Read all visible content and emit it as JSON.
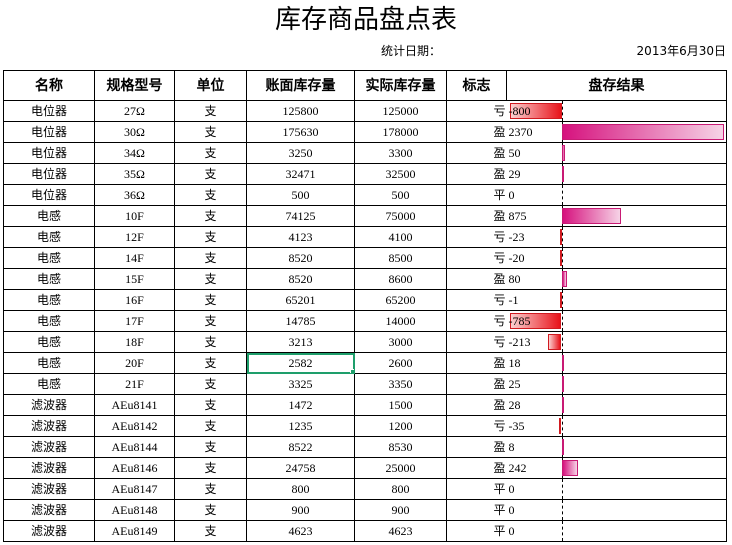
{
  "title": "库存商品盘点表",
  "stat_label": "统计日期：",
  "stat_date": "2013年6月30日",
  "columns": [
    "名称",
    "规格型号",
    "单位",
    "账面库存量",
    "实际库存量",
    "标志",
    "盘存结果"
  ],
  "rows": [
    {
      "name": "电位器",
      "spec": "27Ω",
      "unit": "支",
      "book": "125800",
      "actual": "125000",
      "flag": "亏",
      "result": "-800",
      "value": -800
    },
    {
      "name": "电位器",
      "spec": "30Ω",
      "unit": "支",
      "book": "175630",
      "actual": "178000",
      "flag": "盈",
      "result": "2370",
      "value": 2370
    },
    {
      "name": "电位器",
      "spec": "34Ω",
      "unit": "支",
      "book": "3250",
      "actual": "3300",
      "flag": "盈",
      "result": "50",
      "value": 50
    },
    {
      "name": "电位器",
      "spec": "35Ω",
      "unit": "支",
      "book": "32471",
      "actual": "32500",
      "flag": "盈",
      "result": "29",
      "value": 29
    },
    {
      "name": "电位器",
      "spec": "36Ω",
      "unit": "支",
      "book": "500",
      "actual": "500",
      "flag": "平",
      "result": "0",
      "value": 0
    },
    {
      "name": "电感",
      "spec": "10F",
      "unit": "支",
      "book": "74125",
      "actual": "75000",
      "flag": "盈",
      "result": "875",
      "value": 875
    },
    {
      "name": "电感",
      "spec": "12F",
      "unit": "支",
      "book": "4123",
      "actual": "4100",
      "flag": "亏",
      "result": "-23",
      "value": -23
    },
    {
      "name": "电感",
      "spec": "14F",
      "unit": "支",
      "book": "8520",
      "actual": "8500",
      "flag": "亏",
      "result": "-20",
      "value": -20
    },
    {
      "name": "电感",
      "spec": "15F",
      "unit": "支",
      "book": "8520",
      "actual": "8600",
      "flag": "盈",
      "result": "80",
      "value": 80
    },
    {
      "name": "电感",
      "spec": "16F",
      "unit": "支",
      "book": "65201",
      "actual": "65200",
      "flag": "亏",
      "result": "-1",
      "value": -1
    },
    {
      "name": "电感",
      "spec": "17F",
      "unit": "支",
      "book": "14785",
      "actual": "14000",
      "flag": "亏",
      "result": "-785",
      "value": -785
    },
    {
      "name": "电感",
      "spec": "18F",
      "unit": "支",
      "book": "3213",
      "actual": "3000",
      "flag": "亏",
      "result": "-213",
      "value": -213
    },
    {
      "name": "电感",
      "spec": "20F",
      "unit": "支",
      "book": "2582",
      "actual": "2600",
      "flag": "盈",
      "result": "18",
      "value": 18
    },
    {
      "name": "电感",
      "spec": "21F",
      "unit": "支",
      "book": "3325",
      "actual": "3350",
      "flag": "盈",
      "result": "25",
      "value": 25
    },
    {
      "name": "滤波器",
      "spec": "AEu8141",
      "unit": "支",
      "book": "1472",
      "actual": "1500",
      "flag": "盈",
      "result": "28",
      "value": 28
    },
    {
      "name": "滤波器",
      "spec": "AEu8142",
      "unit": "支",
      "book": "1235",
      "actual": "1200",
      "flag": "亏",
      "result": "-35",
      "value": -35
    },
    {
      "name": "滤波器",
      "spec": "AEu8144",
      "unit": "支",
      "book": "8522",
      "actual": "8530",
      "flag": "盈",
      "result": "8",
      "value": 8
    },
    {
      "name": "滤波器",
      "spec": "AEu8146",
      "unit": "支",
      "book": "24758",
      "actual": "25000",
      "flag": "盈",
      "result": "242",
      "value": 242
    },
    {
      "name": "滤波器",
      "spec": "AEu8147",
      "unit": "支",
      "book": "800",
      "actual": "800",
      "flag": "平",
      "result": "0",
      "value": 0
    },
    {
      "name": "滤波器",
      "spec": "AEu8148",
      "unit": "支",
      "book": "900",
      "actual": "900",
      "flag": "平",
      "result": "0",
      "value": 0
    },
    {
      "name": "滤波器",
      "spec": "AEu8149",
      "unit": "支",
      "book": "4623",
      "actual": "4623",
      "flag": "平",
      "result": "0",
      "value": 0
    }
  ],
  "selected_row": 12,
  "colors": {
    "positive_bar": "#d6127e",
    "negative_bar": "#e8131a",
    "selection": "#1e9e6b"
  },
  "bar_scale": {
    "min": -800,
    "max": 2370
  }
}
